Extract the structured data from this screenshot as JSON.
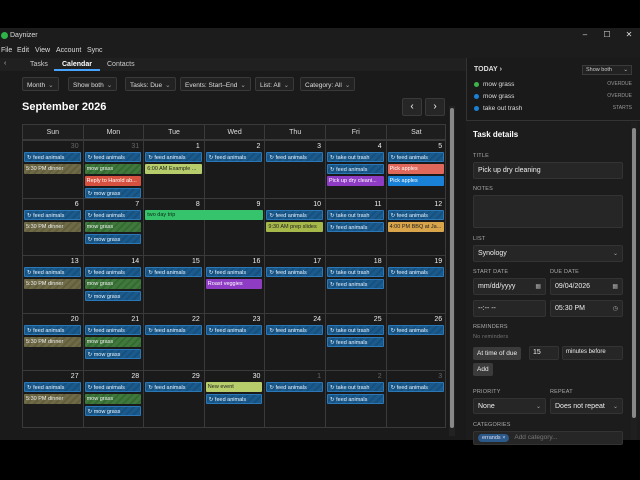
{
  "app": {
    "title": "Daynizer"
  },
  "menu": [
    "File",
    "Edit",
    "View",
    "Account",
    "Sync"
  ],
  "tabs": [
    "Tasks",
    "Calendar",
    "Contacts"
  ],
  "filters": {
    "view": "Month",
    "show": "Show both",
    "tasks": "Tasks: Due",
    "events": "Events: Start–End",
    "list": "List: All",
    "category": "Category: All"
  },
  "calendar": {
    "month_title": "September 2026",
    "weekdays": [
      "Sun",
      "Mon",
      "Tue",
      "Wed",
      "Thu",
      "Fri",
      "Sat"
    ],
    "weeks": [
      [
        {
          "d": "30",
          "other": true,
          "events": [
            {
              "t": "feed animals",
              "c": "task"
            },
            {
              "t": "5:30 PM dinner",
              "c": "dinner"
            }
          ]
        },
        {
          "d": "31",
          "other": true,
          "events": [
            {
              "t": "feed animals",
              "c": "task"
            },
            {
              "t": "mow grass",
              "c": "mow"
            },
            {
              "t": "Reply to Harold ab...",
              "c": "red"
            },
            {
              "t": "mow grass",
              "c": "task"
            }
          ]
        },
        {
          "d": "1",
          "events": [
            {
              "t": "feed animals",
              "c": "task"
            },
            {
              "t": "6:00 AM Example ...",
              "c": "lime"
            }
          ]
        },
        {
          "d": "2",
          "events": [
            {
              "t": "feed animals",
              "c": "task"
            }
          ]
        },
        {
          "d": "3",
          "events": [
            {
              "t": "feed animals",
              "c": "task"
            }
          ]
        },
        {
          "d": "4",
          "events": [
            {
              "t": "take out trash",
              "c": "task"
            },
            {
              "t": "feed animals",
              "c": "task"
            },
            {
              "t": "Pick up dry cleani...",
              "c": "purple"
            }
          ]
        },
        {
          "d": "5",
          "events": [
            {
              "t": "feed animals",
              "c": "task"
            },
            {
              "t": "Pick apples",
              "c": "salmon"
            },
            {
              "t": "Pick apples",
              "c": "blue"
            }
          ]
        }
      ],
      [
        {
          "d": "6",
          "events": [
            {
              "t": "feed animals",
              "c": "task"
            },
            {
              "t": "5:30 PM dinner",
              "c": "dinner"
            }
          ]
        },
        {
          "d": "7",
          "events": [
            {
              "t": "feed animals",
              "c": "task"
            },
            {
              "t": "mow grass",
              "c": "mow"
            },
            {
              "t": "mow grass",
              "c": "task"
            }
          ]
        },
        {
          "d": "8",
          "events": [
            {
              "t": "two day trip",
              "c": "green",
              "span": 2
            }
          ]
        },
        {
          "d": "9",
          "events": []
        },
        {
          "d": "10",
          "events": [
            {
              "t": "feed animals",
              "c": "task"
            },
            {
              "t": "9:30 AM prep slides",
              "c": "olive"
            }
          ]
        },
        {
          "d": "11",
          "events": [
            {
              "t": "take out trash",
              "c": "task"
            },
            {
              "t": "feed animals",
              "c": "task"
            }
          ]
        },
        {
          "d": "12",
          "events": [
            {
              "t": "feed animals",
              "c": "task"
            },
            {
              "t": "4:00 PM BBQ at Ja...",
              "c": "orange"
            }
          ]
        }
      ],
      [
        {
          "d": "13",
          "events": [
            {
              "t": "feed animals",
              "c": "task"
            },
            {
              "t": "5:30 PM dinner",
              "c": "dinner"
            }
          ]
        },
        {
          "d": "14",
          "events": [
            {
              "t": "feed animals",
              "c": "task"
            },
            {
              "t": "mow grass",
              "c": "mow"
            },
            {
              "t": "mow grass",
              "c": "task"
            }
          ]
        },
        {
          "d": "15",
          "events": [
            {
              "t": "feed animals",
              "c": "task"
            }
          ]
        },
        {
          "d": "16",
          "events": [
            {
              "t": "feed animals",
              "c": "task"
            },
            {
              "t": "Roast veggies",
              "c": "purple"
            }
          ]
        },
        {
          "d": "17",
          "events": [
            {
              "t": "feed animals",
              "c": "task"
            }
          ]
        },
        {
          "d": "18",
          "events": [
            {
              "t": "take out trash",
              "c": "task"
            },
            {
              "t": "feed animals",
              "c": "task"
            }
          ]
        },
        {
          "d": "19",
          "events": [
            {
              "t": "feed animals",
              "c": "task"
            }
          ]
        }
      ],
      [
        {
          "d": "20",
          "events": [
            {
              "t": "feed animals",
              "c": "task"
            },
            {
              "t": "5:30 PM dinner",
              "c": "dinner"
            }
          ]
        },
        {
          "d": "21",
          "events": [
            {
              "t": "feed animals",
              "c": "task"
            },
            {
              "t": "mow grass",
              "c": "mow"
            },
            {
              "t": "mow grass",
              "c": "task"
            }
          ]
        },
        {
          "d": "22",
          "events": [
            {
              "t": "feed animals",
              "c": "task"
            }
          ]
        },
        {
          "d": "23",
          "events": [
            {
              "t": "feed animals",
              "c": "task"
            }
          ]
        },
        {
          "d": "24",
          "events": [
            {
              "t": "feed animals",
              "c": "task"
            }
          ]
        },
        {
          "d": "25",
          "events": [
            {
              "t": "take out trash",
              "c": "task"
            },
            {
              "t": "feed animals",
              "c": "task"
            }
          ]
        },
        {
          "d": "26",
          "events": [
            {
              "t": "feed animals",
              "c": "task"
            }
          ]
        }
      ],
      [
        {
          "d": "27",
          "events": [
            {
              "t": "feed animals",
              "c": "task"
            },
            {
              "t": "5:30 PM dinner",
              "c": "dinner"
            }
          ]
        },
        {
          "d": "28",
          "events": [
            {
              "t": "feed animals",
              "c": "task"
            },
            {
              "t": "mow grass",
              "c": "mow"
            },
            {
              "t": "mow grass",
              "c": "task"
            }
          ]
        },
        {
          "d": "29",
          "events": [
            {
              "t": "feed animals",
              "c": "task"
            }
          ]
        },
        {
          "d": "30",
          "events": [
            {
              "t": "New event",
              "c": "lime"
            },
            {
              "t": "feed animals",
              "c": "task"
            }
          ]
        },
        {
          "d": "1",
          "other": true,
          "events": [
            {
              "t": "feed animals",
              "c": "task"
            }
          ]
        },
        {
          "d": "2",
          "other": true,
          "events": [
            {
              "t": "take out trash",
              "c": "task"
            },
            {
              "t": "feed animals",
              "c": "task"
            }
          ]
        },
        {
          "d": "3",
          "other": true,
          "events": [
            {
              "t": "feed animals",
              "c": "task"
            }
          ]
        }
      ]
    ]
  },
  "today": {
    "header": "TODAY",
    "show_label": "Show both",
    "items": [
      {
        "label": "mow grass",
        "status": "OVERDUE",
        "color": "#3fb24a"
      },
      {
        "label": "mow grass",
        "status": "OVERDUE",
        "color": "#1a82d6"
      },
      {
        "label": "take out trash",
        "status": "STARTS",
        "color": "#1a82d6"
      }
    ]
  },
  "detail": {
    "header": "Task details",
    "title_label": "TITLE",
    "title_value": "Pick up dry cleaning",
    "notes_label": "NOTES",
    "list_label": "LIST",
    "list_value": "Synology",
    "start_label": "START DATE",
    "due_label": "DUE DATE",
    "start_date": "mm/dd/yyyy",
    "due_date": "09/04/2026",
    "start_time": "--:-- --",
    "due_time": "05:30 PM",
    "reminders_label": "REMINDERS",
    "no_reminders": "No reminders",
    "at_time_label": "At time of due",
    "reminder_amount": "15",
    "reminder_unit": "minutes before",
    "add_button": "Add",
    "priority_label": "PRIORITY",
    "priority_value": "None",
    "repeat_label": "REPEAT",
    "repeat_value": "Does not repeat",
    "categories_label": "CATEGORIES",
    "category_chip": "errands",
    "category_placeholder": "Add category..."
  }
}
